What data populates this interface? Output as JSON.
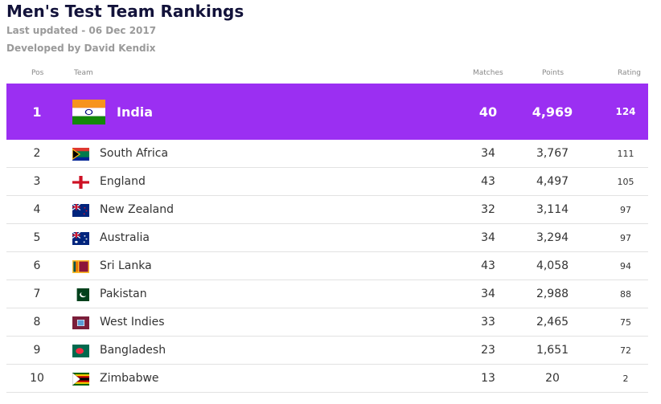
{
  "header": {
    "title": "Men's Test Team Rankings",
    "last_updated": "Last updated - 06 Dec 2017",
    "developer": "Developed by David Kendix"
  },
  "table": {
    "columns": [
      "Pos",
      "Team",
      "Matches",
      "Points",
      "Rating"
    ],
    "rows": [
      [
        "1",
        "India",
        "40",
        "4,969",
        "124"
      ],
      [
        "2",
        "South Africa",
        "34",
        "3,767",
        "111"
      ],
      [
        "3",
        "England",
        "43",
        "4,497",
        "105"
      ],
      [
        "4",
        "New Zealand",
        "32",
        "3,114",
        "97"
      ],
      [
        "5",
        "Australia",
        "34",
        "3,294",
        "97"
      ],
      [
        "6",
        "Sri Lanka",
        "43",
        "4,058",
        "94"
      ],
      [
        "7",
        "Pakistan",
        "34",
        "2,988",
        "88"
      ],
      [
        "8",
        "West Indies",
        "33",
        "2,465",
        "75"
      ],
      [
        "9",
        "Bangladesh",
        "23",
        "1,651",
        "72"
      ],
      [
        "10",
        "Zimbabwe",
        "13",
        "20",
        "2"
      ]
    ]
  }
}
